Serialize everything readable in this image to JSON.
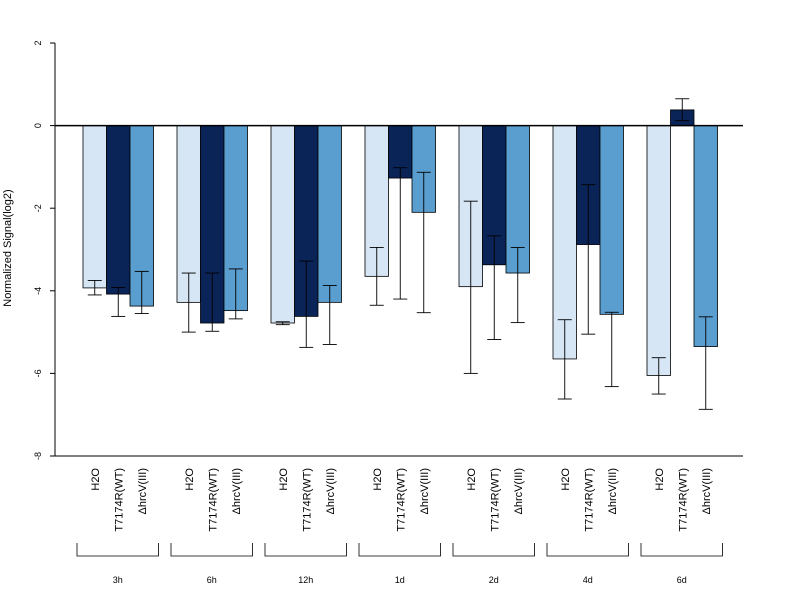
{
  "chart_data": {
    "type": "bar",
    "ylabel": "Normalized Signal(log2)",
    "ylim": [
      -8,
      2
    ],
    "yticks": [
      2,
      0,
      -2,
      -4,
      -6,
      -8
    ],
    "grid": false,
    "legend": "none",
    "colors": {
      "H2O": "#d6e6f5",
      "T7174R(WT)": "#0a2458",
      "ΔhrcV(III)": "#5a9ecf"
    },
    "groups": [
      "3h",
      "6h",
      "12h",
      "1d",
      "2d",
      "4d",
      "6d"
    ],
    "series": [
      {
        "name": "H2O",
        "values": [
          -3.93,
          -4.28,
          -4.78,
          -3.65,
          -3.9,
          -5.65,
          -6.05
        ],
        "err_low": [
          -4.1,
          -5.0,
          -4.82,
          -4.35,
          -6.0,
          -6.62,
          -6.5
        ],
        "err_high": [
          -3.75,
          -3.57,
          -4.75,
          -2.95,
          -1.83,
          -4.7,
          -5.62
        ]
      },
      {
        "name": "T7174R(WT)",
        "values": [
          -4.08,
          -4.78,
          -4.62,
          -1.27,
          -3.37,
          -2.88,
          0.38
        ],
        "err_low": [
          -4.62,
          -4.98,
          -5.37,
          -4.2,
          -5.18,
          -5.05,
          0.12
        ],
        "err_high": [
          -3.92,
          -3.57,
          -3.28,
          -1.02,
          -2.67,
          -1.43,
          0.65
        ]
      },
      {
        "name": "ΔhrcV(III)",
        "values": [
          -4.37,
          -4.48,
          -4.28,
          -2.1,
          -3.57,
          -4.57,
          -5.35
        ],
        "err_low": [
          -4.55,
          -4.68,
          -5.3,
          -4.53,
          -4.77,
          -6.32,
          -6.87
        ],
        "err_high": [
          -3.53,
          -3.47,
          -3.87,
          -1.13,
          -2.95,
          -4.52,
          -4.63
        ]
      }
    ]
  }
}
